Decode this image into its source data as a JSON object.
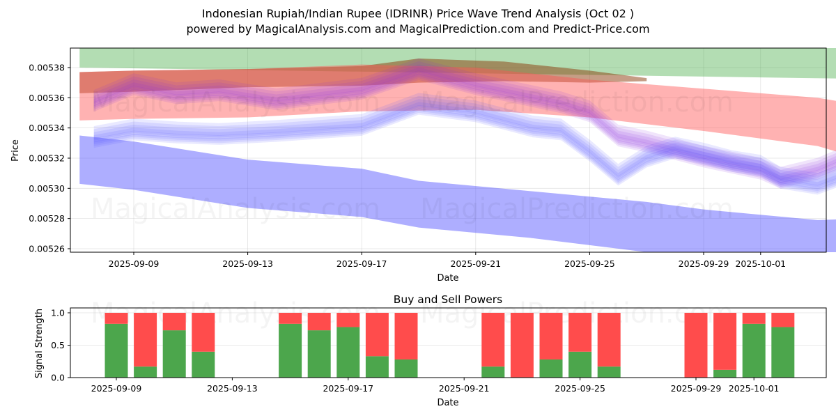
{
  "title": {
    "line1": "Indonesian Rupiah/Indian Rupee (IDRINR) Price Wave Trend Analysis (Oct 02 )",
    "line2": "powered by MagicalAnalysis.com and MagicalPrediction.com and Predict-Price.com"
  },
  "watermarks": [
    "MagicalAnalysis.com",
    "MagicalPrediction.com"
  ],
  "chart_data": [
    {
      "type": "area",
      "title": "",
      "xlabel": "Date",
      "ylabel": "Price",
      "ylim": [
        0.005258,
        0.005393
      ],
      "x_range": [
        "2025-09-06",
        "2025-10-04"
      ],
      "grid": true,
      "yticks": [
        "0.00526",
        "0.00528",
        "0.00530",
        "0.00532",
        "0.00534",
        "0.00536",
        "0.00538"
      ],
      "xticks": [
        "2025-09-09",
        "2025-09-13",
        "2025-09-17",
        "2025-09-21",
        "2025-09-25",
        "2025-09-29",
        "2025-10-01"
      ],
      "bands": [
        {
          "name": "green-upper-band",
          "color": "#2ca02c",
          "opacity": 0.36,
          "x": [
            -1.9,
            27.5
          ],
          "upper": [
            0.005393,
            0.005393
          ],
          "lower": [
            0.00538,
            0.005372
          ]
        },
        {
          "name": "brown-band",
          "color": "#8c3b0b",
          "opacity": 0.5,
          "x": [
            -1.9,
            0,
            4,
            8,
            10,
            13,
            16,
            18
          ],
          "upper": [
            0.005377,
            0.005378,
            0.005379,
            0.005381,
            0.005386,
            0.005384,
            0.005378,
            0.005373
          ],
          "lower": [
            0.005363,
            0.005364,
            0.005367,
            0.005368,
            0.00537,
            0.005371,
            0.00537,
            0.005371
          ]
        },
        {
          "name": "red-band",
          "color": "#ff5555",
          "opacity": 0.45,
          "x": [
            -1.9,
            0,
            4,
            8,
            12,
            16,
            20,
            24,
            27.8
          ],
          "upper": [
            0.005377,
            0.005378,
            0.005379,
            0.005382,
            0.00538,
            0.005372,
            0.005366,
            0.00536,
            0.005348
          ],
          "lower": [
            0.005345,
            0.005346,
            0.005347,
            0.005351,
            0.005352,
            0.005347,
            0.005338,
            0.005328,
            0.005307
          ]
        },
        {
          "name": "blue-lower-band",
          "color": "#5555ff",
          "opacity": 0.48,
          "x": [
            -1.9,
            0,
            4,
            8,
            10,
            14,
            18,
            20,
            24,
            27.5
          ],
          "upper": [
            0.005335,
            0.005331,
            0.005319,
            0.005313,
            0.005305,
            0.005298,
            0.005291,
            0.005286,
            0.005279,
            0.005281
          ],
          "lower": [
            0.005303,
            0.005299,
            0.005287,
            0.005281,
            0.005274,
            0.005267,
            0.005257,
            0.005255,
            0.005252,
            0.005257
          ]
        }
      ],
      "wave_paths": [
        {
          "color": "#8a2be2",
          "x": [
            -1.4,
            0,
            1.5,
            3,
            5,
            8,
            10,
            12,
            13.5,
            15,
            16,
            17,
            18,
            19,
            20,
            21,
            22,
            22.7,
            24,
            25,
            26.5
          ],
          "y": [
            0.005357,
            0.005368,
            0.005362,
            0.005364,
            0.005358,
            0.005365,
            0.005378,
            0.005368,
            0.005362,
            0.005356,
            0.00535,
            0.005334,
            0.00533,
            0.005325,
            0.00532,
            0.005316,
            0.005312,
            0.005306,
            0.005312,
            0.00532,
            0.00533
          ]
        },
        {
          "color": "#5555ff",
          "x": [
            -1.4,
            0,
            1.5,
            3,
            5,
            8,
            10,
            12,
            13,
            14,
            15,
            16,
            17,
            18,
            19,
            20,
            21,
            22,
            22.7,
            24,
            25,
            26.5
          ],
          "y": [
            0.005333,
            0.005338,
            0.005336,
            0.005335,
            0.005337,
            0.005341,
            0.005355,
            0.00535,
            0.005345,
            0.00534,
            0.005338,
            0.005324,
            0.005308,
            0.00532,
            0.005326,
            0.005322,
            0.005317,
            0.005314,
            0.005306,
            0.005302,
            0.005309,
            0.005313
          ]
        }
      ]
    },
    {
      "type": "bar",
      "title": "Buy and Sell Powers",
      "xlabel": "Date",
      "ylabel": "Signal Strength",
      "ylim": [
        0,
        1.05
      ],
      "yticks": [
        "0.0",
        "0.5",
        "1.0"
      ],
      "xticks": [
        "2025-09-09",
        "2025-09-13",
        "2025-09-17",
        "2025-09-21",
        "2025-09-25",
        "2025-09-29",
        "2025-10-01"
      ],
      "grid": true,
      "categories": [
        "2025-09-09",
        "2025-09-10",
        "2025-09-11",
        "2025-09-12",
        "2025-09-15",
        "2025-09-16",
        "2025-09-17",
        "2025-09-18",
        "2025-09-19",
        "2025-09-22",
        "2025-09-23",
        "2025-09-24",
        "2025-09-25",
        "2025-09-26",
        "2025-09-29",
        "2025-09-30",
        "2025-10-01",
        "2025-10-02"
      ],
      "series": [
        {
          "name": "Buy",
          "color": "#4ca64c",
          "values": [
            0.83,
            0.17,
            0.73,
            0.4,
            0.83,
            0.73,
            0.78,
            0.33,
            0.28,
            0.17,
            0.0,
            0.28,
            0.4,
            0.17,
            0.0,
            0.12,
            0.83,
            0.78
          ]
        },
        {
          "name": "Sell",
          "color": "#ff4c4c",
          "values": [
            0.17,
            0.83,
            0.27,
            0.6,
            0.17,
            0.27,
            0.22,
            0.67,
            0.72,
            0.83,
            1.0,
            0.72,
            0.6,
            0.83,
            1.0,
            0.88,
            0.17,
            0.22
          ]
        }
      ]
    }
  ]
}
